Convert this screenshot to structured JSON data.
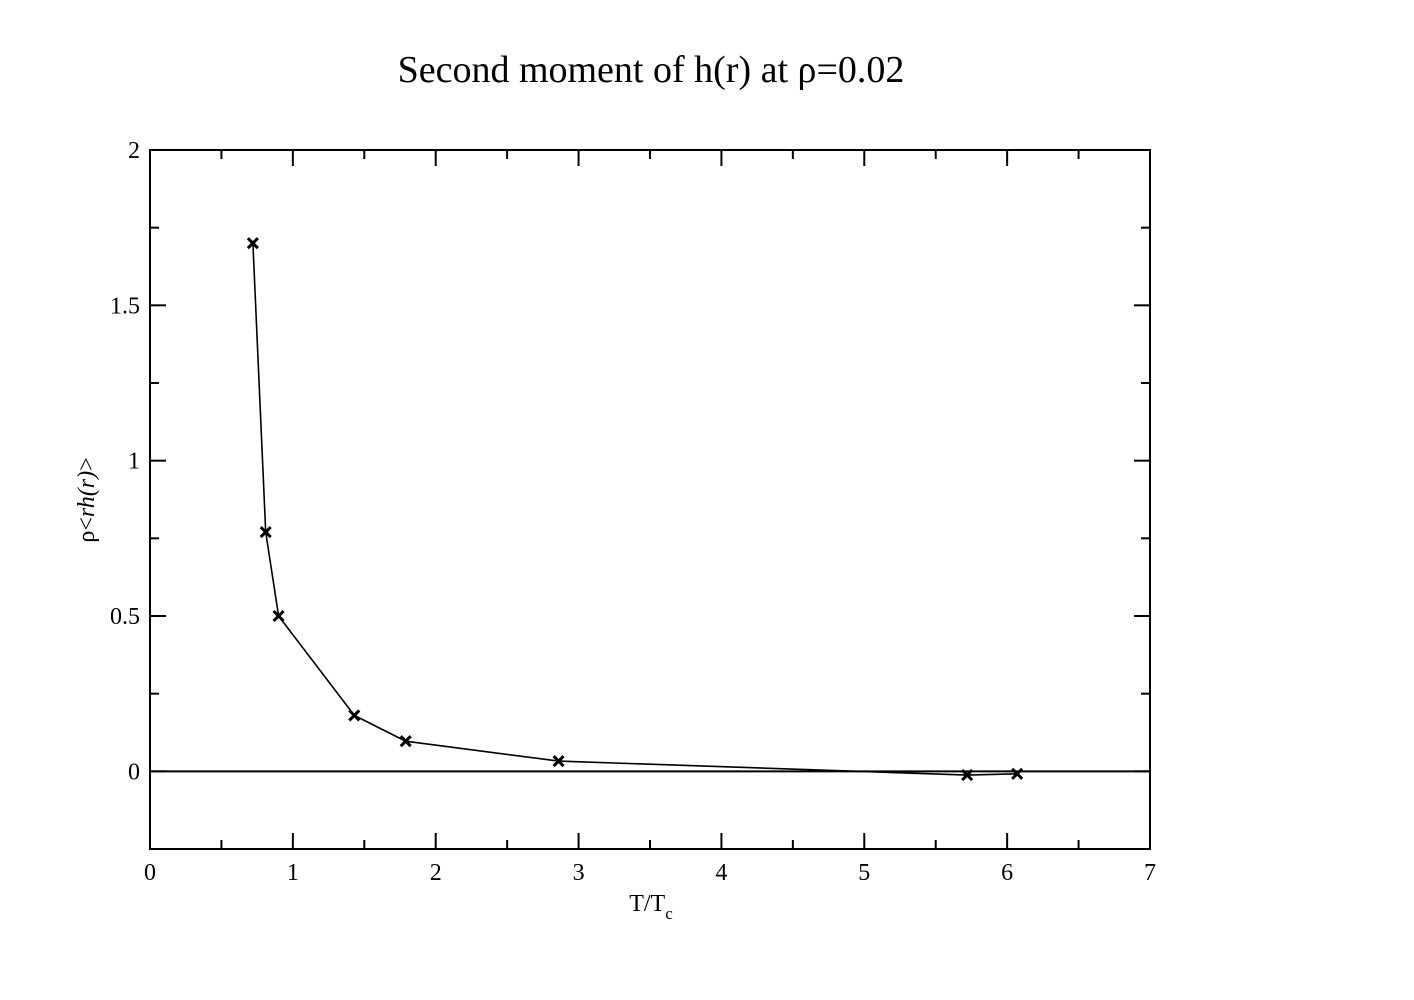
{
  "chart_data": {
    "type": "line",
    "title": "Second moment of h(r) at ρ=0.02",
    "xlabel": {
      "main": "T/T",
      "subscript": "c"
    },
    "ylabel": {
      "prefix": "ρ<",
      "italic": "rh(r)",
      "suffix": ">"
    },
    "xlim": [
      0,
      7
    ],
    "ylim": [
      -0.25,
      2
    ],
    "x_ticks": [
      0,
      1,
      2,
      3,
      4,
      5,
      6,
      7
    ],
    "x_tick_labels": [
      "0",
      "1",
      "2",
      "3",
      "4",
      "5",
      "6",
      "7"
    ],
    "x_minor_ticks": [
      0.5,
      1.5,
      2.5,
      3.5,
      4.5,
      5.5,
      6.5
    ],
    "y_ticks": [
      0,
      0.5,
      1,
      1.5,
      2
    ],
    "y_tick_labels": [
      "0",
      "0.5",
      "1",
      "1.5",
      "2"
    ],
    "y_minor_ticks": [
      -0.25,
      0.25,
      0.75,
      1.25,
      1.75
    ],
    "grid": false,
    "legend": "none",
    "reference_lines": [
      {
        "name": "zero-line",
        "y": 0
      }
    ],
    "series": [
      {
        "marker": "x",
        "color": "#000000",
        "x": [
          0.72,
          0.81,
          0.9,
          1.43,
          1.79,
          2.86,
          5.72,
          6.07
        ],
        "y": [
          1.7,
          0.77,
          0.5,
          0.18,
          0.097,
          0.033,
          -0.012,
          -0.008
        ]
      }
    ]
  }
}
